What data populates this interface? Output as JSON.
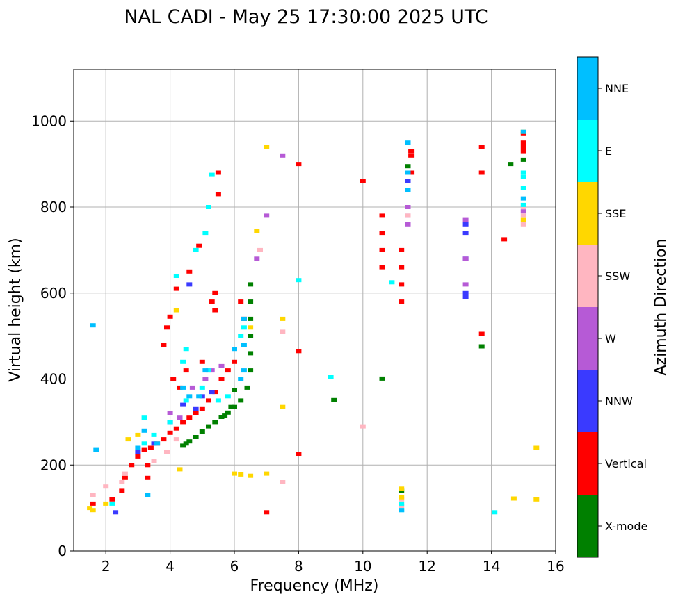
{
  "chart_data": {
    "type": "scatter",
    "title": "NAL CADI - May 25 17:30:00 2025 UTC",
    "xlabel": "Frequency (MHz)",
    "ylabel": "Virtual height (km)",
    "xlim": [
      1,
      16
    ],
    "ylim": [
      0,
      1120
    ],
    "xticks": [
      2,
      4,
      6,
      8,
      10,
      12,
      14,
      16
    ],
    "yticks": [
      0,
      200,
      400,
      600,
      800,
      1000
    ],
    "grid": true,
    "colorbar": {
      "label": "Azimuth Direction",
      "categories": [
        "X-mode",
        "Vertical",
        "NNW",
        "W",
        "SSW",
        "SSE",
        "E",
        "NNE"
      ],
      "colors": [
        "#008000",
        "#ff0000",
        "#3a3aff",
        "#b65ad6",
        "#ffb6c1",
        "#ffd700",
        "#00ffff",
        "#00bfff"
      ]
    },
    "series": [
      {
        "name": "X-mode",
        "points": [
          [
            4.4,
            245
          ],
          [
            4.6,
            255
          ],
          [
            4.8,
            265
          ],
          [
            5.0,
            278
          ],
          [
            5.2,
            290
          ],
          [
            5.4,
            300
          ],
          [
            5.6,
            312
          ],
          [
            5.8,
            322
          ],
          [
            6.0,
            335
          ],
          [
            6.2,
            350
          ],
          [
            6.4,
            380
          ],
          [
            6.5,
            420
          ],
          [
            6.5,
            460
          ],
          [
            6.5,
            500
          ],
          [
            6.5,
            540
          ],
          [
            6.5,
            580
          ],
          [
            6.5,
            620
          ],
          [
            6.0,
            375
          ],
          [
            5.9,
            335
          ],
          [
            5.7,
            315
          ],
          [
            4.5,
            250
          ],
          [
            11.4,
            895
          ],
          [
            14.6,
            900
          ],
          [
            15.0,
            910
          ],
          [
            13.7,
            476
          ],
          [
            9.1,
            351
          ],
          [
            10.6,
            401
          ],
          [
            11.2,
            140
          ]
        ]
      },
      {
        "name": "Vertical",
        "points": [
          [
            1.6,
            110
          ],
          [
            2.2,
            120
          ],
          [
            2.5,
            140
          ],
          [
            2.6,
            170
          ],
          [
            2.8,
            200
          ],
          [
            3.0,
            220
          ],
          [
            3.2,
            235
          ],
          [
            3.4,
            240
          ],
          [
            3.6,
            250
          ],
          [
            3.8,
            260
          ],
          [
            4.0,
            275
          ],
          [
            4.2,
            285
          ],
          [
            4.4,
            300
          ],
          [
            4.6,
            310
          ],
          [
            4.8,
            320
          ],
          [
            5.0,
            330
          ],
          [
            5.2,
            350
          ],
          [
            5.4,
            370
          ],
          [
            5.6,
            400
          ],
          [
            5.8,
            420
          ],
          [
            6.0,
            440
          ],
          [
            3.3,
            200
          ],
          [
            3.3,
            170
          ],
          [
            3.8,
            480
          ],
          [
            3.9,
            520
          ],
          [
            4.0,
            545
          ],
          [
            4.2,
            610
          ],
          [
            4.6,
            650
          ],
          [
            4.9,
            710
          ],
          [
            5.4,
            560
          ],
          [
            5.4,
            600
          ],
          [
            5.3,
            580
          ],
          [
            5.5,
            880
          ],
          [
            5.5,
            830
          ],
          [
            6.2,
            580
          ],
          [
            6.3,
            540
          ],
          [
            4.1,
            400
          ],
          [
            4.3,
            380
          ],
          [
            4.5,
            420
          ],
          [
            5.0,
            440
          ],
          [
            10.6,
            660
          ],
          [
            10.6,
            700
          ],
          [
            10.6,
            740
          ],
          [
            10.6,
            780
          ],
          [
            11.2,
            580
          ],
          [
            11.2,
            620
          ],
          [
            11.2,
            660
          ],
          [
            11.2,
            700
          ],
          [
            11.5,
            930
          ],
          [
            11.5,
            920
          ],
          [
            11.5,
            880
          ],
          [
            13.7,
            940
          ],
          [
            13.7,
            880
          ],
          [
            13.7,
            505
          ],
          [
            14.4,
            725
          ],
          [
            15.0,
            970
          ],
          [
            15.0,
            950
          ],
          [
            15.0,
            930
          ],
          [
            15.0,
            940
          ],
          [
            8.0,
            900
          ],
          [
            8.0,
            465
          ],
          [
            8.0,
            225
          ],
          [
            7.0,
            90
          ],
          [
            10.0,
            860
          ]
        ]
      },
      {
        "name": "NNW",
        "points": [
          [
            3.0,
            230
          ],
          [
            3.5,
            250
          ],
          [
            4.0,
            300
          ],
          [
            4.4,
            340
          ],
          [
            4.8,
            330
          ],
          [
            5.0,
            360
          ],
          [
            5.3,
            370
          ],
          [
            4.6,
            620
          ],
          [
            13.2,
            600
          ],
          [
            13.2,
            590
          ],
          [
            13.2,
            760
          ],
          [
            13.2,
            740
          ],
          [
            13.2,
            680
          ],
          [
            11.4,
            860
          ],
          [
            2.3,
            90
          ]
        ]
      },
      {
        "name": "W",
        "points": [
          [
            4.0,
            320
          ],
          [
            4.3,
            310
          ],
          [
            4.7,
            380
          ],
          [
            5.1,
            400
          ],
          [
            5.3,
            420
          ],
          [
            5.6,
            430
          ],
          [
            7.0,
            780
          ],
          [
            7.5,
            920
          ],
          [
            11.4,
            800
          ],
          [
            11.4,
            780
          ],
          [
            11.4,
            760
          ],
          [
            13.2,
            770
          ],
          [
            13.2,
            680
          ],
          [
            13.2,
            620
          ],
          [
            15.0,
            790
          ],
          [
            6.7,
            680
          ]
        ]
      },
      {
        "name": "SSW",
        "points": [
          [
            1.6,
            130
          ],
          [
            2.0,
            150
          ],
          [
            2.5,
            160
          ],
          [
            2.6,
            180
          ],
          [
            3.5,
            210
          ],
          [
            3.9,
            230
          ],
          [
            4.2,
            260
          ],
          [
            6.8,
            700
          ],
          [
            7.5,
            510
          ],
          [
            7.5,
            160
          ],
          [
            10.0,
            290
          ],
          [
            11.2,
            120
          ],
          [
            11.2,
            105
          ],
          [
            15.0,
            780
          ],
          [
            15.0,
            760
          ],
          [
            15.0,
            800
          ],
          [
            11.4,
            780
          ]
        ]
      },
      {
        "name": "SSE",
        "points": [
          [
            1.5,
            100
          ],
          [
            1.6,
            95
          ],
          [
            2.0,
            110
          ],
          [
            2.7,
            260
          ],
          [
            3.0,
            270
          ],
          [
            4.2,
            560
          ],
          [
            4.3,
            190
          ],
          [
            6.0,
            180
          ],
          [
            6.2,
            178
          ],
          [
            6.5,
            175
          ],
          [
            7.0,
            180
          ],
          [
            7.0,
            940
          ],
          [
            7.5,
            540
          ],
          [
            7.5,
            335
          ],
          [
            6.7,
            745
          ],
          [
            6.5,
            520
          ],
          [
            11.2,
            145
          ],
          [
            11.2,
            125
          ],
          [
            15.0,
            770
          ],
          [
            15.4,
            240
          ],
          [
            15.4,
            120
          ],
          [
            14.7,
            122
          ],
          [
            15.0,
            975
          ]
        ]
      },
      {
        "name": "E",
        "points": [
          [
            2.2,
            110
          ],
          [
            3.2,
            250
          ],
          [
            3.5,
            270
          ],
          [
            4.0,
            300
          ],
          [
            4.5,
            350
          ],
          [
            5.0,
            380
          ],
          [
            5.2,
            420
          ],
          [
            5.5,
            350
          ],
          [
            5.8,
            360
          ],
          [
            4.4,
            440
          ],
          [
            4.5,
            470
          ],
          [
            4.2,
            640
          ],
          [
            4.8,
            700
          ],
          [
            5.1,
            740
          ],
          [
            5.2,
            800
          ],
          [
            5.3,
            875
          ],
          [
            6.2,
            500
          ],
          [
            6.3,
            520
          ],
          [
            10.9,
            625
          ],
          [
            14.1,
            90
          ],
          [
            11.2,
            110
          ],
          [
            11.2,
            95
          ],
          [
            15.0,
            880
          ],
          [
            15.0,
            870
          ],
          [
            15.0,
            845
          ],
          [
            15.0,
            805
          ],
          [
            9.0,
            404
          ],
          [
            8.0,
            630
          ],
          [
            3.2,
            310
          ]
        ]
      },
      {
        "name": "NNE",
        "points": [
          [
            1.6,
            525
          ],
          [
            1.7,
            235
          ],
          [
            3.0,
            240
          ],
          [
            3.2,
            280
          ],
          [
            3.3,
            130
          ],
          [
            3.6,
            250
          ],
          [
            4.4,
            380
          ],
          [
            4.6,
            360
          ],
          [
            4.9,
            360
          ],
          [
            5.1,
            420
          ],
          [
            6.3,
            480
          ],
          [
            6.3,
            540
          ],
          [
            6.3,
            420
          ],
          [
            6.0,
            470
          ],
          [
            6.2,
            400
          ],
          [
            11.4,
            950
          ],
          [
            11.4,
            840
          ],
          [
            11.2,
            95
          ],
          [
            15.0,
            975
          ],
          [
            15.0,
            820
          ],
          [
            11.4,
            880
          ]
        ]
      }
    ]
  }
}
